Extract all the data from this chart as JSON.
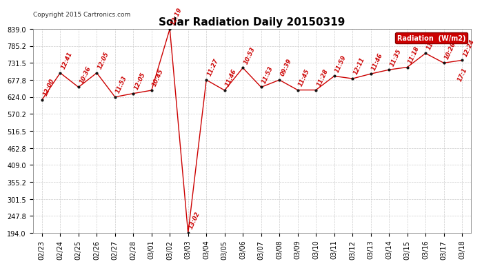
{
  "title": "Solar Radiation Daily 20150319",
  "copyright": "Copyright 2015 Cartronics.com",
  "legend_label": "Radiation  (W/m2)",
  "x_labels": [
    "02/23",
    "02/24",
    "02/25",
    "02/26",
    "02/27",
    "02/28",
    "03/01",
    "03/02",
    "03/03",
    "03/04",
    "03/05",
    "03/06",
    "03/07",
    "03/08",
    "03/09",
    "03/10",
    "03/11",
    "03/12",
    "03/13",
    "03/14",
    "03/15",
    "03/16",
    "03/17",
    "03/18"
  ],
  "y_values": [
    615.0,
    700.0,
    655.0,
    700.0,
    624.0,
    635.0,
    645.0,
    839.0,
    194.0,
    677.8,
    645.0,
    716.0,
    655.0,
    677.8,
    646.0,
    646.0,
    690.0,
    682.0,
    697.0,
    710.0,
    718.0,
    762.0,
    731.5,
    740.0
  ],
  "point_labels": [
    "12:00",
    "12:41",
    "10:36",
    "12:05",
    "11:53",
    "12:05",
    "10:45",
    "12:19",
    "13:02",
    "11:27",
    "11:46",
    "10:53",
    "11:53",
    "09:39",
    "11:45",
    "11:28",
    "11:59",
    "12:11",
    "11:46",
    "11:35",
    "11:18",
    "11:20",
    "10:26",
    "12:24"
  ],
  "extra_label": "17:1",
  "extra_label_xi": 23,
  "ylim_min": 194.0,
  "ylim_max": 839.0,
  "ytick_values": [
    194.0,
    247.8,
    301.5,
    355.2,
    409.0,
    462.8,
    516.5,
    570.2,
    624.0,
    677.8,
    731.5,
    785.2,
    839.0
  ],
  "bg_color": "#ffffff",
  "line_color": "#cc0000",
  "marker_color": "#111111",
  "grid_color": "#cccccc",
  "title_color": "#000000",
  "legend_bg": "#cc0000",
  "legend_fg": "#ffffff",
  "copyright_color": "#333333",
  "title_fontsize": 11,
  "tick_fontsize": 7,
  "label_fontsize": 6,
  "point_label_fontsize": 6,
  "point_label_rotation": 65
}
